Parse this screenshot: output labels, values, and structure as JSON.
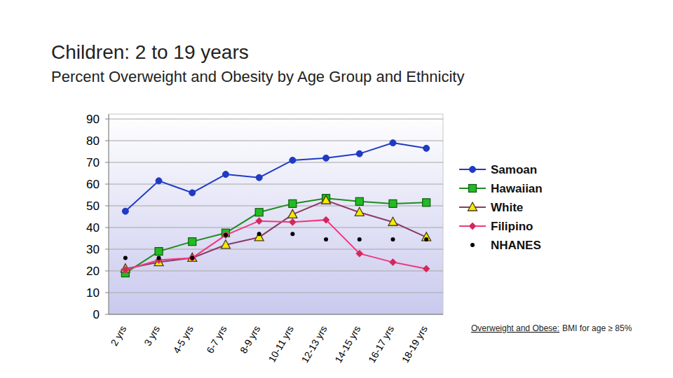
{
  "chart_data": {
    "type": "line",
    "title": "Children: 2 to 19 years",
    "subtitle": "Percent Overweight and Obesity by Age Group and Ethnicity",
    "annotations": [
      "Overweight and Obese:",
      "BMI for age ≥ 85%"
    ],
    "categories": [
      "2 yrs",
      "3 yrs",
      "4-5 yrs",
      "6-7 yrs",
      "8-9 yrs",
      "10-11 yrs",
      "12-13 yrs",
      "14-15 yrs",
      "16-17 yrs",
      "18-19 yrs"
    ],
    "series": [
      {
        "name": "Samoan",
        "color": "#1f3bc4",
        "marker": "circle",
        "line_style": "solid",
        "values": [
          47.5,
          61.5,
          56,
          64.5,
          63,
          71,
          72,
          74,
          79,
          76.5
        ]
      },
      {
        "name": "Hawaiian",
        "color": "#1e8c1e",
        "marker": "square",
        "line_style": "solid",
        "values": [
          19,
          29,
          33.5,
          37.5,
          47,
          51,
          53.5,
          52,
          51,
          51.5
        ]
      },
      {
        "name": "White",
        "color": "#8b3a66",
        "marker": "triangle",
        "line_style": "solid",
        "values": [
          21,
          24,
          26,
          32,
          35.5,
          46,
          52.5,
          47,
          42.5,
          35.5
        ]
      },
      {
        "name": "Filipino",
        "color": "#f0387e",
        "marker": "diamond",
        "line_style": "solid",
        "values": [
          20.5,
          25,
          26,
          36.5,
          43,
          42.5,
          43.5,
          28,
          24,
          21
        ]
      },
      {
        "name": "NHANES",
        "color": "#000000",
        "marker": "dot",
        "line_style": "none",
        "values": [
          26,
          26,
          26,
          36.5,
          37,
          37,
          34.5,
          34.5,
          34.5,
          34.5
        ]
      }
    ],
    "ylim": [
      0,
      90
    ],
    "yticks": [
      0,
      10,
      20,
      30,
      40,
      50,
      60,
      70,
      80,
      90
    ],
    "grid": true,
    "legend": "right"
  }
}
